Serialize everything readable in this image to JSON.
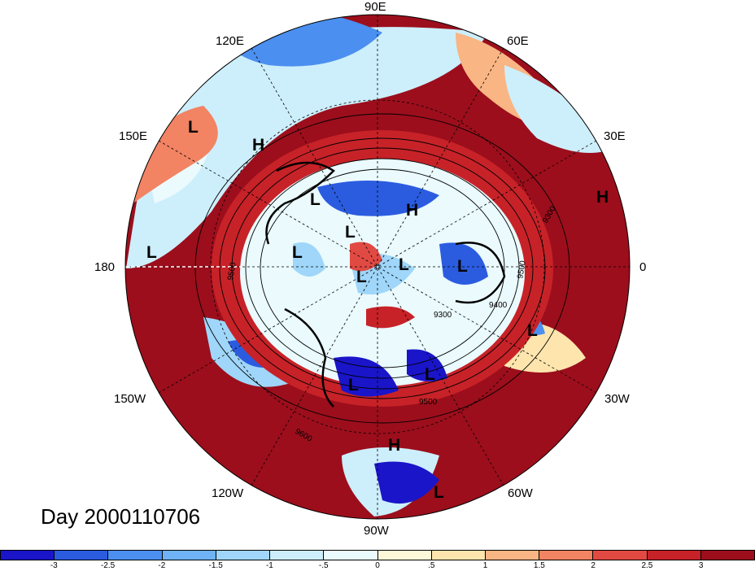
{
  "title": "Day 2000110706",
  "longitude_labels": [
    {
      "id": "90e",
      "text": "90E"
    },
    {
      "id": "60e",
      "text": "60E"
    },
    {
      "id": "120e",
      "text": "120E"
    },
    {
      "id": "150e",
      "text": "150E"
    },
    {
      "id": "30e",
      "text": "30E"
    },
    {
      "id": "180",
      "text": "180"
    },
    {
      "id": "0",
      "text": "0"
    },
    {
      "id": "150w",
      "text": "150W"
    },
    {
      "id": "30w",
      "text": "30W"
    },
    {
      "id": "120w",
      "text": "120W"
    },
    {
      "id": "60w",
      "text": "60W"
    },
    {
      "id": "90w",
      "text": "90W"
    }
  ],
  "pressure_centers": [
    {
      "id": "c1",
      "type": "L"
    },
    {
      "id": "c2",
      "type": "H"
    },
    {
      "id": "c3",
      "type": "L"
    },
    {
      "id": "c4",
      "type": "H"
    },
    {
      "id": "c5",
      "type": "L"
    },
    {
      "id": "c6",
      "type": "L"
    },
    {
      "id": "c7",
      "type": "L"
    },
    {
      "id": "c8",
      "type": "L"
    },
    {
      "id": "c9",
      "type": "L"
    },
    {
      "id": "c10",
      "type": "L"
    },
    {
      "id": "c11",
      "type": "H"
    },
    {
      "id": "c12",
      "type": "L"
    },
    {
      "id": "c13",
      "type": "L"
    },
    {
      "id": "c14",
      "type": "L"
    },
    {
      "id": "c15",
      "type": "L"
    },
    {
      "id": "c16",
      "type": "H"
    },
    {
      "id": "c17",
      "type": "L"
    }
  ],
  "contour_labels": [
    "9500",
    "9300",
    "9400",
    "9500",
    "9600",
    "9500",
    "9300"
  ],
  "colorbar": {
    "colors": [
      "#1a15c9",
      "#2b5ce0",
      "#4b8ff0",
      "#6fb2f5",
      "#9fd6f9",
      "#cdeefb",
      "#eafafd",
      "#fdf8d8",
      "#fde5ad",
      "#f9b583",
      "#f28363",
      "#e14a43",
      "#c72228",
      "#9c0e1c"
    ],
    "labels": [
      "-3",
      "-2.5",
      "-2",
      "-1.5",
      "-1",
      "-.5",
      "0",
      ".5",
      "1",
      "1.5",
      "2",
      "2.5",
      "3"
    ]
  }
}
